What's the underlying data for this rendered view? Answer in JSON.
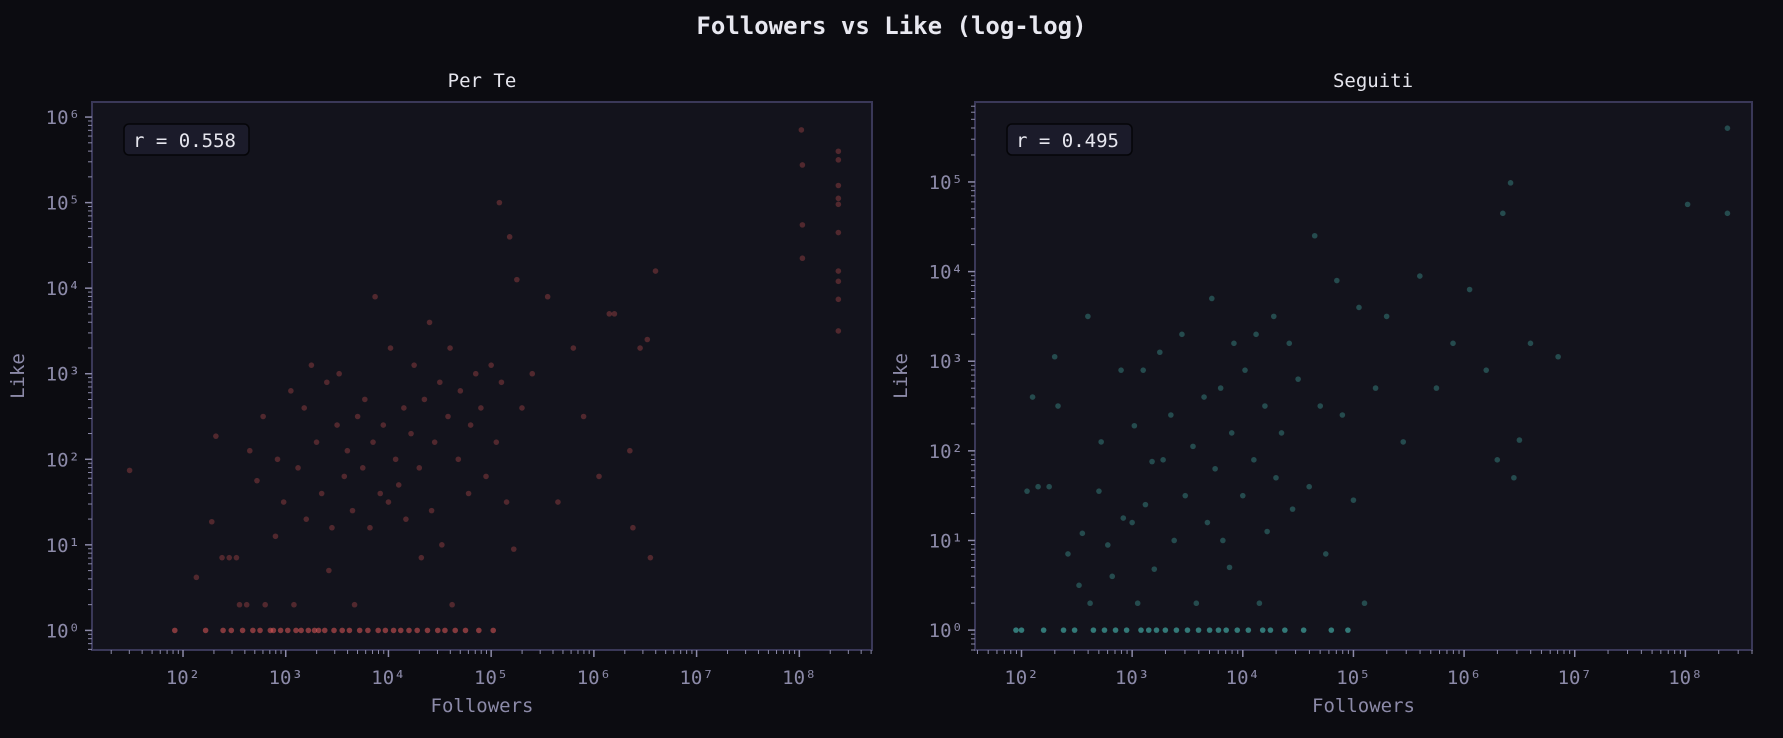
{
  "figure": {
    "title": "Followers vs Like (log-log)",
    "background": "#0c0c11",
    "axes_background": "#13131c",
    "spine_color": "#3a3858",
    "tick_label_color": "#8c8aa8"
  },
  "chart_data": [
    {
      "type": "scatter",
      "title": "Per Te",
      "xlabel": "Followers",
      "ylabel": "Like",
      "xscale": "log",
      "yscale": "log",
      "xlim": [
        13,
        510000000
      ],
      "ylim": [
        0.59,
        1500000
      ],
      "xticks": [
        "10^2",
        "10^3",
        "10^4",
        "10^5",
        "10^6",
        "10^7",
        "10^8"
      ],
      "yticks": [
        "10^0",
        "10^1",
        "10^2",
        "10^3",
        "10^4",
        "10^5",
        "10^6"
      ],
      "annotation": "r = 0.558",
      "correlation_r": 0.558,
      "color": "#e05a5a",
      "grid": false,
      "points_log10": [
        [
          1.48,
          1.87
        ],
        [
          1.92,
          0.0
        ],
        [
          2.13,
          0.62
        ],
        [
          2.22,
          0.0
        ],
        [
          2.28,
          1.27
        ],
        [
          2.32,
          2.27
        ],
        [
          2.38,
          0.85
        ],
        [
          2.39,
          0.0
        ],
        [
          2.45,
          0.85
        ],
        [
          2.47,
          0.0
        ],
        [
          2.52,
          0.85
        ],
        [
          2.55,
          0.3
        ],
        [
          2.58,
          0.0
        ],
        [
          2.62,
          0.3
        ],
        [
          2.65,
          2.1
        ],
        [
          2.68,
          0.0
        ],
        [
          2.72,
          1.75
        ],
        [
          2.75,
          0.0
        ],
        [
          2.78,
          2.5
        ],
        [
          2.8,
          0.3
        ],
        [
          2.85,
          0.0
        ],
        [
          2.88,
          0.0
        ],
        [
          2.9,
          1.1
        ],
        [
          2.92,
          2.0
        ],
        [
          2.95,
          0.0
        ],
        [
          2.98,
          1.5
        ],
        [
          3.02,
          0.0
        ],
        [
          3.05,
          2.8
        ],
        [
          3.08,
          0.3
        ],
        [
          3.1,
          0.0
        ],
        [
          3.12,
          1.9
        ],
        [
          3.15,
          0.0
        ],
        [
          3.18,
          2.6
        ],
        [
          3.2,
          1.3
        ],
        [
          3.22,
          0.0
        ],
        [
          3.25,
          3.1
        ],
        [
          3.28,
          0.0
        ],
        [
          3.3,
          2.2
        ],
        [
          3.32,
          0.0
        ],
        [
          3.35,
          1.6
        ],
        [
          3.38,
          0.0
        ],
        [
          3.4,
          2.9
        ],
        [
          3.42,
          0.7
        ],
        [
          3.45,
          1.2
        ],
        [
          3.47,
          0.0
        ],
        [
          3.5,
          2.4
        ],
        [
          3.52,
          3.0
        ],
        [
          3.55,
          0.0
        ],
        [
          3.57,
          1.8
        ],
        [
          3.6,
          2.1
        ],
        [
          3.62,
          0.0
        ],
        [
          3.65,
          1.4
        ],
        [
          3.67,
          0.3
        ],
        [
          3.7,
          2.5
        ],
        [
          3.72,
          0.0
        ],
        [
          3.75,
          1.9
        ],
        [
          3.77,
          2.7
        ],
        [
          3.8,
          0.0
        ],
        [
          3.82,
          1.2
        ],
        [
          3.85,
          2.2
        ],
        [
          3.87,
          3.9
        ],
        [
          3.9,
          0.0
        ],
        [
          3.92,
          1.6
        ],
        [
          3.95,
          2.4
        ],
        [
          3.97,
          0.0
        ],
        [
          4.0,
          1.5
        ],
        [
          4.02,
          3.3
        ],
        [
          4.05,
          0.0
        ],
        [
          4.07,
          2.0
        ],
        [
          4.1,
          1.7
        ],
        [
          4.12,
          0.0
        ],
        [
          4.15,
          2.6
        ],
        [
          4.17,
          1.3
        ],
        [
          4.2,
          0.0
        ],
        [
          4.22,
          2.3
        ],
        [
          4.25,
          3.1
        ],
        [
          4.28,
          0.0
        ],
        [
          4.3,
          1.9
        ],
        [
          4.32,
          0.85
        ],
        [
          4.35,
          2.7
        ],
        [
          4.38,
          0.0
        ],
        [
          4.4,
          3.6
        ],
        [
          4.42,
          1.4
        ],
        [
          4.45,
          2.2
        ],
        [
          4.48,
          0.0
        ],
        [
          4.5,
          2.9
        ],
        [
          4.52,
          1.0
        ],
        [
          4.55,
          0.0
        ],
        [
          4.58,
          2.5
        ],
        [
          4.6,
          3.3
        ],
        [
          4.62,
          0.3
        ],
        [
          4.65,
          0.0
        ],
        [
          4.68,
          2.0
        ],
        [
          4.7,
          2.8
        ],
        [
          4.75,
          0.0
        ],
        [
          4.78,
          1.6
        ],
        [
          4.8,
          2.4
        ],
        [
          4.85,
          3.0
        ],
        [
          4.88,
          0.0
        ],
        [
          4.9,
          2.6
        ],
        [
          4.95,
          1.8
        ],
        [
          5.0,
          3.1
        ],
        [
          5.02,
          0.0
        ],
        [
          5.05,
          2.2
        ],
        [
          5.08,
          5.0
        ],
        [
          5.1,
          2.9
        ],
        [
          5.15,
          1.5
        ],
        [
          5.18,
          4.6
        ],
        [
          5.22,
          0.95
        ],
        [
          5.25,
          4.1
        ],
        [
          5.3,
          2.6
        ],
        [
          5.4,
          3.0
        ],
        [
          5.55,
          3.9
        ],
        [
          5.65,
          1.5
        ],
        [
          5.8,
          3.3
        ],
        [
          5.9,
          2.5
        ],
        [
          6.05,
          1.8
        ],
        [
          6.15,
          3.7
        ],
        [
          6.2,
          3.7
        ],
        [
          6.35,
          2.1
        ],
        [
          6.38,
          1.2
        ],
        [
          6.45,
          3.3
        ],
        [
          6.52,
          3.4
        ],
        [
          6.55,
          0.85
        ],
        [
          6.6,
          4.2
        ],
        [
          8.02,
          5.85
        ],
        [
          8.03,
          5.44
        ],
        [
          8.03,
          4.74
        ],
        [
          8.03,
          4.35
        ],
        [
          8.38,
          5.6
        ],
        [
          8.38,
          5.5
        ],
        [
          8.38,
          5.2
        ],
        [
          8.38,
          5.05
        ],
        [
          8.38,
          4.98
        ],
        [
          8.38,
          4.65
        ],
        [
          8.38,
          4.2
        ],
        [
          8.38,
          4.08
        ],
        [
          8.38,
          3.87
        ],
        [
          8.38,
          3.5
        ]
      ]
    },
    {
      "type": "scatter",
      "title": "Seguiti",
      "xlabel": "Followers",
      "ylabel": "Like",
      "xscale": "log",
      "yscale": "log",
      "xlim": [
        38,
        400000000
      ],
      "ylim": [
        0.6,
        780000
      ],
      "xticks": [
        "10^2",
        "10^3",
        "10^4",
        "10^5",
        "10^6",
        "10^7",
        "10^8"
      ],
      "yticks": [
        "10^0",
        "10^1",
        "10^2",
        "10^3",
        "10^4",
        "10^5"
      ],
      "annotation": "r = 0.495",
      "correlation_r": 0.495,
      "color": "#4ecdc4",
      "grid": false,
      "points_log10": [
        [
          1.95,
          0.0
        ],
        [
          2.0,
          0.0
        ],
        [
          2.05,
          1.55
        ],
        [
          2.1,
          2.6
        ],
        [
          2.15,
          1.6
        ],
        [
          2.2,
          0.0
        ],
        [
          2.25,
          1.6
        ],
        [
          2.3,
          3.05
        ],
        [
          2.33,
          2.5
        ],
        [
          2.38,
          0.0
        ],
        [
          2.42,
          0.85
        ],
        [
          2.48,
          0.0
        ],
        [
          2.52,
          0.5
        ],
        [
          2.55,
          1.08
        ],
        [
          2.6,
          3.5
        ],
        [
          2.62,
          0.3
        ],
        [
          2.65,
          0.0
        ],
        [
          2.7,
          1.55
        ],
        [
          2.72,
          2.1
        ],
        [
          2.75,
          0.0
        ],
        [
          2.78,
          0.95
        ],
        [
          2.82,
          0.6
        ],
        [
          2.85,
          0.0
        ],
        [
          2.9,
          2.9
        ],
        [
          2.92,
          1.25
        ],
        [
          2.95,
          0.0
        ],
        [
          3.0,
          1.2
        ],
        [
          3.02,
          2.28
        ],
        [
          3.05,
          0.3
        ],
        [
          3.08,
          0.0
        ],
        [
          3.1,
          2.9
        ],
        [
          3.12,
          1.4
        ],
        [
          3.15,
          0.0
        ],
        [
          3.18,
          1.88
        ],
        [
          3.2,
          0.68
        ],
        [
          3.22,
          0.0
        ],
        [
          3.25,
          3.1
        ],
        [
          3.28,
          1.9
        ],
        [
          3.3,
          0.0
        ],
        [
          3.35,
          2.4
        ],
        [
          3.38,
          1.0
        ],
        [
          3.4,
          0.0
        ],
        [
          3.45,
          3.3
        ],
        [
          3.48,
          1.5
        ],
        [
          3.5,
          0.0
        ],
        [
          3.55,
          2.05
        ],
        [
          3.58,
          0.3
        ],
        [
          3.6,
          0.0
        ],
        [
          3.65,
          2.6
        ],
        [
          3.68,
          1.2
        ],
        [
          3.7,
          0.0
        ],
        [
          3.72,
          3.7
        ],
        [
          3.75,
          1.8
        ],
        [
          3.78,
          0.0
        ],
        [
          3.8,
          2.7
        ],
        [
          3.82,
          1.0
        ],
        [
          3.85,
          0.0
        ],
        [
          3.88,
          0.7
        ],
        [
          3.9,
          2.2
        ],
        [
          3.92,
          3.2
        ],
        [
          3.95,
          0.0
        ],
        [
          4.0,
          1.5
        ],
        [
          4.02,
          2.9
        ],
        [
          4.05,
          0.0
        ],
        [
          4.1,
          1.9
        ],
        [
          4.12,
          3.3
        ],
        [
          4.15,
          0.3
        ],
        [
          4.18,
          0.0
        ],
        [
          4.2,
          2.5
        ],
        [
          4.22,
          1.1
        ],
        [
          4.25,
          0.0
        ],
        [
          4.28,
          3.5
        ],
        [
          4.3,
          1.7
        ],
        [
          4.35,
          2.2
        ],
        [
          4.38,
          0.0
        ],
        [
          4.42,
          3.2
        ],
        [
          4.45,
          1.35
        ],
        [
          4.5,
          2.8
        ],
        [
          4.55,
          0.0
        ],
        [
          4.6,
          1.6
        ],
        [
          4.65,
          4.4
        ],
        [
          4.7,
          2.5
        ],
        [
          4.75,
          0.85
        ],
        [
          4.8,
          0.0
        ],
        [
          4.85,
          3.9
        ],
        [
          4.9,
          2.4
        ],
        [
          4.95,
          0.0
        ],
        [
          5.0,
          1.45
        ],
        [
          5.05,
          3.6
        ],
        [
          5.1,
          0.3
        ],
        [
          5.2,
          2.7
        ],
        [
          5.3,
          3.5
        ],
        [
          5.45,
          2.1
        ],
        [
          5.6,
          3.95
        ],
        [
          5.75,
          2.7
        ],
        [
          5.9,
          3.2
        ],
        [
          6.05,
          3.8
        ],
        [
          6.2,
          2.9
        ],
        [
          6.3,
          1.9
        ],
        [
          6.35,
          4.65
        ],
        [
          6.42,
          4.99
        ],
        [
          6.45,
          1.7
        ],
        [
          6.5,
          2.12
        ],
        [
          6.6,
          3.2
        ],
        [
          6.85,
          3.05
        ],
        [
          8.02,
          4.75
        ],
        [
          8.38,
          5.6
        ],
        [
          8.38,
          4.65
        ]
      ]
    }
  ],
  "panels": [
    {
      "title": "Per Te",
      "annotation": "r = 0.558",
      "xlabel": "Followers",
      "ylabel": "Like"
    },
    {
      "title": "Seguiti",
      "annotation": "r = 0.495",
      "xlabel": "Followers",
      "ylabel": "Like"
    }
  ]
}
